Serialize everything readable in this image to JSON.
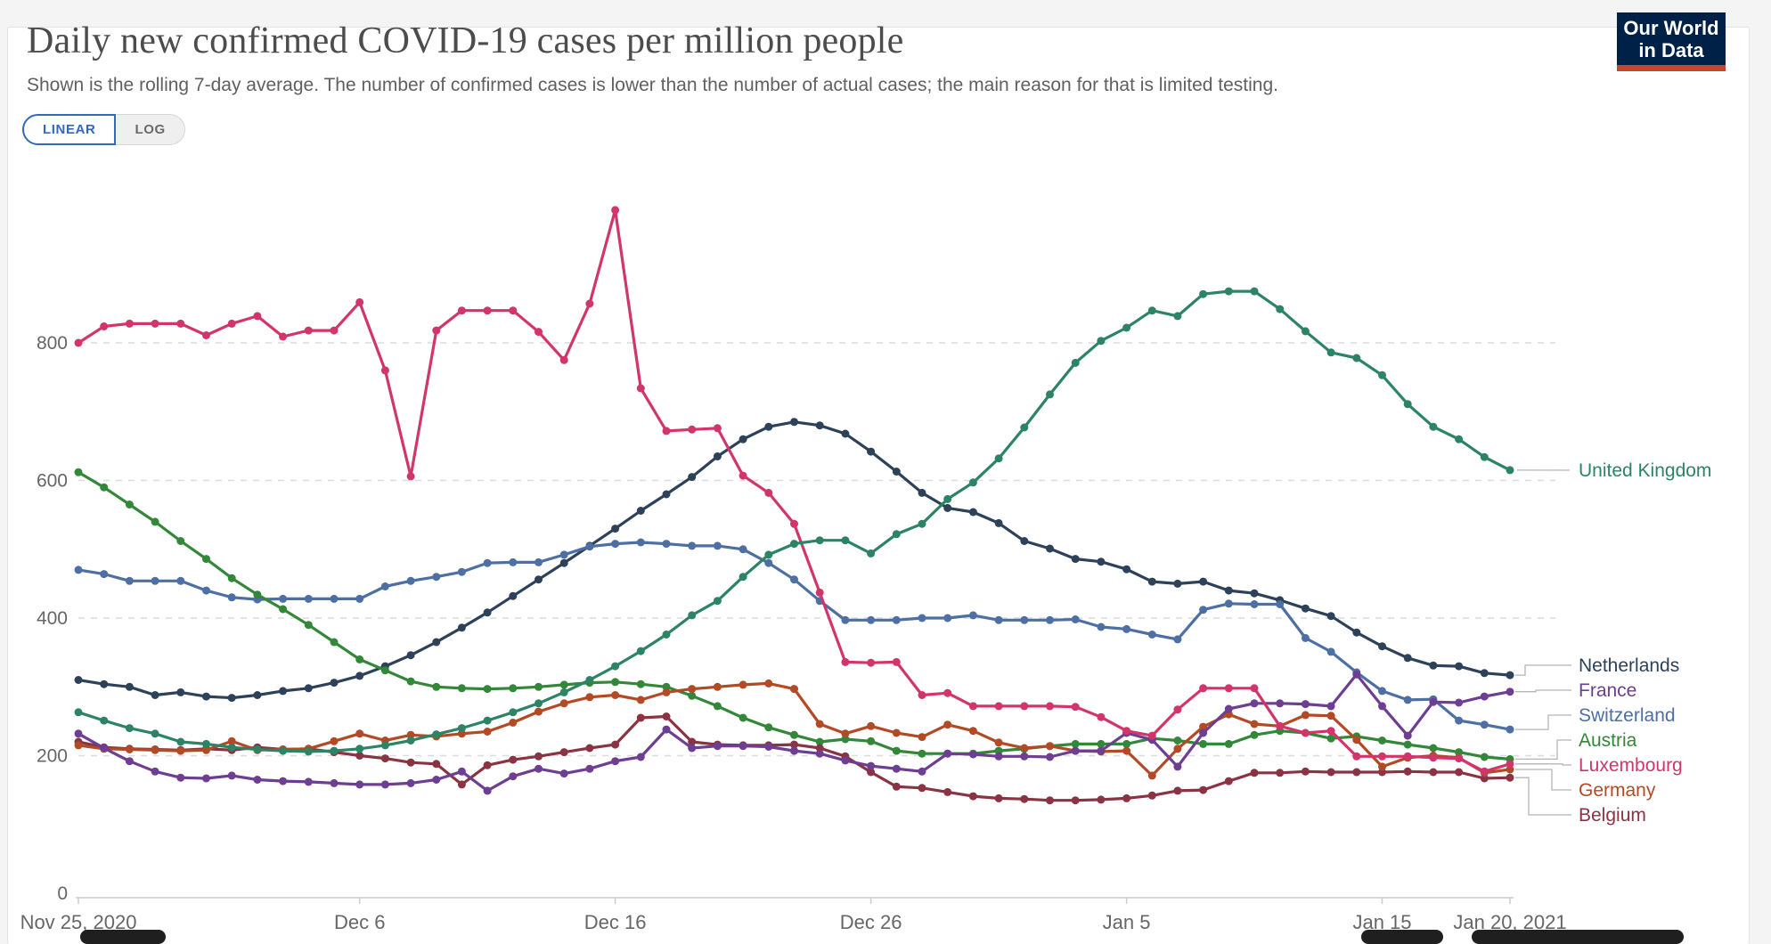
{
  "header": {
    "title": "Daily new confirmed COVID-19 cases per million people",
    "subtitle": "Shown is the rolling 7-day average. The number of confirmed cases is lower than the number of actual cases; the main reason for that is limited testing.",
    "logo": {
      "line1": "Our World",
      "line2": "in Data",
      "bg_color": "#002147",
      "accent_color": "#C9432E"
    }
  },
  "controls": {
    "scale_options": [
      {
        "label": "LINEAR",
        "active": true
      },
      {
        "label": "LOG",
        "active": false
      }
    ],
    "accent_color": "#3268BE"
  },
  "chart_data": {
    "type": "line",
    "x_axis": {
      "start_date": "Nov 25, 2020",
      "end_date": "Jan 20, 2021",
      "num_points": 57,
      "unit": "day"
    },
    "x_tick_labels": [
      {
        "label": "Nov 25, 2020",
        "day": 0
      },
      {
        "label": "Dec 6",
        "day": 11
      },
      {
        "label": "Dec 16",
        "day": 21
      },
      {
        "label": "Dec 26",
        "day": 31
      },
      {
        "label": "Jan 5",
        "day": 41
      },
      {
        "label": "Jan 15",
        "day": 51
      },
      {
        "label": "Jan 20, 2021",
        "day": 56
      }
    ],
    "y_ticks": [
      0,
      200,
      400,
      600,
      800
    ],
    "ylim": [
      0,
      1040
    ],
    "grid": "horizontal-dashed",
    "legend_position": "right",
    "axis_text_color": "#666666",
    "series": [
      {
        "name": "United Kingdom",
        "color": "#2C8465",
        "values": [
          263,
          251,
          240,
          232,
          220,
          217,
          212,
          209,
          207,
          206,
          207,
          210,
          215,
          222,
          231,
          240,
          251,
          263,
          276,
          292,
          310,
          330,
          352,
          376,
          404,
          425,
          460,
          492,
          508,
          513,
          513,
          494,
          522,
          537,
          573,
          597,
          632,
          677,
          725,
          771,
          803,
          822,
          847,
          839,
          871,
          875,
          875,
          849,
          817,
          786,
          778,
          753,
          711,
          678,
          660,
          634,
          615
        ]
      },
      {
        "name": "Netherlands",
        "color": "#2D4159",
        "values": [
          310,
          304,
          300,
          288,
          292,
          286,
          284,
          288,
          294,
          298,
          306,
          316,
          330,
          346,
          365,
          386,
          408,
          432,
          456,
          480,
          505,
          530,
          556,
          580,
          605,
          635,
          660,
          678,
          685,
          680,
          668,
          642,
          613,
          582,
          560,
          554,
          538,
          512,
          501,
          486,
          482,
          471,
          453,
          450,
          453,
          440,
          436,
          426,
          414,
          403,
          379,
          359,
          342,
          331,
          330,
          320,
          317
        ]
      },
      {
        "name": "France",
        "color": "#6D3E91",
        "values": [
          232,
          211,
          192,
          177,
          168,
          167,
          171,
          165,
          163,
          162,
          160,
          158,
          158,
          160,
          165,
          177,
          149,
          170,
          181,
          174,
          181,
          192,
          198,
          238,
          211,
          214,
          214,
          213,
          207,
          203,
          193,
          185,
          181,
          177,
          203,
          202,
          199,
          199,
          198,
          207,
          207,
          233,
          223,
          184,
          233,
          268,
          276,
          276,
          275,
          272,
          318,
          272,
          229,
          278,
          277,
          286,
          293
        ]
      },
      {
        "name": "Switzerland",
        "color": "#4D6FA3",
        "values": [
          470,
          464,
          454,
          454,
          454,
          440,
          430,
          427,
          428,
          428,
          428,
          428,
          446,
          454,
          460,
          467,
          480,
          481,
          481,
          492,
          504,
          508,
          510,
          508,
          505,
          505,
          500,
          480,
          456,
          425,
          397,
          397,
          397,
          400,
          400,
          404,
          397,
          397,
          397,
          398,
          387,
          384,
          376,
          369,
          412,
          421,
          420,
          420,
          371,
          351,
          321,
          294,
          281,
          282,
          251,
          245,
          238
        ]
      },
      {
        "name": "Austria",
        "color": "#338738",
        "values": [
          612,
          590,
          565,
          540,
          512,
          486,
          458,
          434,
          413,
          390,
          365,
          340,
          324,
          308,
          300,
          298,
          297,
          298,
          300,
          303,
          306,
          307,
          304,
          300,
          287,
          272,
          255,
          241,
          230,
          220,
          224,
          221,
          207,
          203,
          203,
          203,
          207,
          210,
          214,
          217,
          217,
          217,
          225,
          222,
          217,
          217,
          230,
          236,
          233,
          225,
          228,
          222,
          216,
          211,
          205,
          198,
          195
        ]
      },
      {
        "name": "Luxembourg",
        "color": "#D1356B",
        "values": [
          800,
          824,
          828,
          828,
          828,
          811,
          828,
          839,
          809,
          818,
          818,
          859,
          760,
          606,
          818,
          847,
          847,
          847,
          816,
          775,
          857,
          993,
          734,
          672,
          674,
          676,
          607,
          582,
          537,
          437,
          336,
          335,
          336,
          288,
          291,
          272,
          272,
          272,
          272,
          271,
          256,
          236,
          229,
          267,
          298,
          298,
          298,
          243,
          233,
          236,
          199,
          199,
          199,
          197,
          196,
          177,
          188
        ]
      },
      {
        "name": "Germany",
        "color": "#B24A26",
        "values": [
          215,
          210,
          209,
          208,
          207,
          208,
          221,
          208,
          209,
          210,
          221,
          232,
          222,
          230,
          228,
          232,
          235,
          248,
          264,
          276,
          285,
          288,
          281,
          292,
          297,
          300,
          303,
          305,
          297,
          246,
          232,
          243,
          233,
          227,
          245,
          236,
          219,
          211,
          214,
          207,
          206,
          207,
          171,
          210,
          242,
          260,
          246,
          243,
          259,
          258,
          223,
          184,
          197,
          200,
          197,
          175,
          180
        ]
      },
      {
        "name": "Belgium",
        "color": "#8A3343",
        "values": [
          220,
          212,
          210,
          209,
          208,
          210,
          208,
          212,
          209,
          210,
          205,
          200,
          196,
          190,
          188,
          158,
          186,
          194,
          199,
          205,
          211,
          216,
          255,
          257,
          220,
          216,
          215,
          215,
          216,
          211,
          199,
          176,
          155,
          153,
          147,
          141,
          138,
          137,
          135,
          135,
          136,
          138,
          142,
          149,
          150,
          163,
          175,
          175,
          177,
          176,
          176,
          176,
          177,
          176,
          176,
          167,
          168
        ]
      }
    ]
  }
}
